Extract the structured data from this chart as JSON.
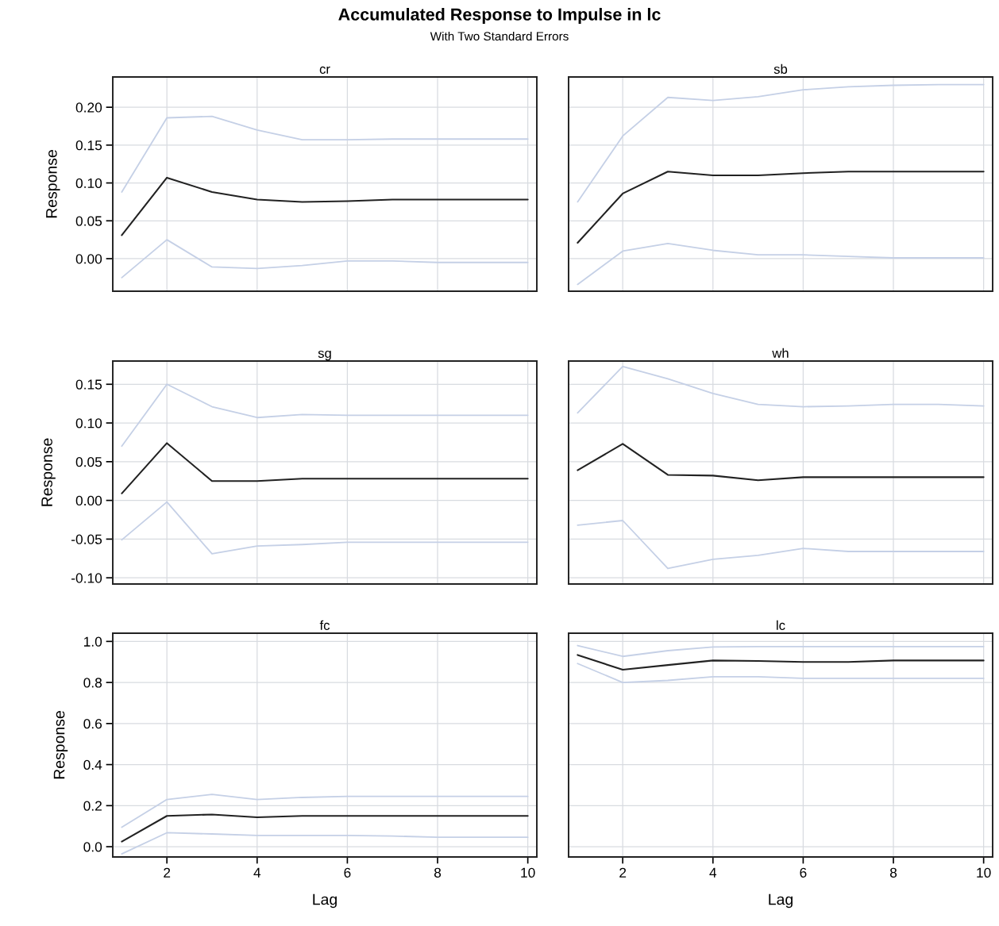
{
  "chart_data": [
    {
      "type": "line",
      "title": "cr",
      "ylabel": "Response",
      "annotations": [
        "Accumulated Response to Impulse in lc",
        "With Two Standard Errors"
      ],
      "x": [
        1,
        2,
        3,
        4,
        5,
        6,
        7,
        8,
        9,
        10
      ],
      "xlim": [
        0.8,
        10.2
      ],
      "xticks": [
        2,
        4,
        6,
        8,
        10
      ],
      "ylim": [
        -0.043,
        0.24
      ],
      "yticks": [
        {
          "value": 0,
          "label": "0.00"
        },
        {
          "value": 0.05,
          "label": "0.05"
        },
        {
          "value": 0.1,
          "label": "0.10"
        },
        {
          "value": 0.15,
          "label": "0.15"
        },
        {
          "value": 0.2,
          "label": "0.20"
        }
      ],
      "grid": true,
      "tick_labels": "y",
      "series": [
        {
          "color": "#c5d0e6",
          "values": [
            0.088,
            0.186,
            0.188,
            0.17,
            0.157,
            0.157,
            0.158,
            0.158,
            0.158,
            0.158
          ]
        },
        {
          "color": "#222222",
          "values": [
            0.031,
            0.107,
            0.088,
            0.078,
            0.075,
            0.076,
            0.078,
            0.078,
            0.078,
            0.078
          ]
        },
        {
          "color": "#c5d0e6",
          "values": [
            -0.025,
            0.025,
            -0.011,
            -0.013,
            -0.009,
            -0.003,
            -0.003,
            -0.005,
            -0.005,
            -0.005
          ]
        }
      ]
    },
    {
      "type": "line",
      "title": "sb",
      "x": [
        1,
        2,
        3,
        4,
        5,
        6,
        7,
        8,
        9,
        10
      ],
      "xlim": [
        0.8,
        10.2
      ],
      "xticks": [
        2,
        4,
        6,
        8,
        10
      ],
      "ylim": [
        -0.043,
        0.24
      ],
      "yticks": [
        0,
        0.05,
        0.1,
        0.15,
        0.2
      ],
      "grid": true,
      "tick_labels": false,
      "series": [
        {
          "color": "#c5d0e6",
          "values": [
            0.075,
            0.162,
            0.213,
            0.209,
            0.214,
            0.223,
            0.227,
            0.229,
            0.23,
            0.23
          ]
        },
        {
          "color": "#222222",
          "values": [
            0.021,
            0.086,
            0.115,
            0.11,
            0.11,
            0.113,
            0.115,
            0.115,
            0.115,
            0.115
          ]
        },
        {
          "color": "#c5d0e6",
          "values": [
            -0.034,
            0.01,
            0.02,
            0.011,
            0.005,
            0.005,
            0.003,
            0.001,
            0.001,
            0.001
          ]
        }
      ]
    },
    {
      "type": "line",
      "title": "sg",
      "ylabel": "Response",
      "x": [
        1,
        2,
        3,
        4,
        5,
        6,
        7,
        8,
        9,
        10
      ],
      "xlim": [
        0.8,
        10.2
      ],
      "xticks": [
        2,
        4,
        6,
        8,
        10
      ],
      "ylim": [
        -0.108,
        0.18
      ],
      "yticks": [
        {
          "value": -0.1,
          "label": "-0.10"
        },
        {
          "value": -0.05,
          "label": "-0.05"
        },
        {
          "value": 0,
          "label": "0.00"
        },
        {
          "value": 0.05,
          "label": "0.05"
        },
        {
          "value": 0.1,
          "label": "0.10"
        },
        {
          "value": 0.15,
          "label": "0.15"
        }
      ],
      "grid": true,
      "tick_labels": "y",
      "series": [
        {
          "color": "#c5d0e6",
          "values": [
            0.07,
            0.15,
            0.121,
            0.107,
            0.111,
            0.11,
            0.11,
            0.11,
            0.11,
            0.11
          ]
        },
        {
          "color": "#222222",
          "values": [
            0.009,
            0.074,
            0.025,
            0.025,
            0.028,
            0.028,
            0.028,
            0.028,
            0.028,
            0.028
          ]
        },
        {
          "color": "#c5d0e6",
          "values": [
            -0.051,
            -0.002,
            -0.069,
            -0.059,
            -0.057,
            -0.054,
            -0.054,
            -0.054,
            -0.054,
            -0.054
          ]
        }
      ]
    },
    {
      "type": "line",
      "title": "wh",
      "x": [
        1,
        2,
        3,
        4,
        5,
        6,
        7,
        8,
        9,
        10
      ],
      "xlim": [
        0.8,
        10.2
      ],
      "xticks": [
        2,
        4,
        6,
        8,
        10
      ],
      "ylim": [
        -0.108,
        0.18
      ],
      "yticks": [
        -0.1,
        -0.05,
        0,
        0.05,
        0.1,
        0.15
      ],
      "grid": true,
      "tick_labels": false,
      "series": [
        {
          "color": "#c5d0e6",
          "values": [
            0.113,
            0.173,
            0.157,
            0.138,
            0.124,
            0.121,
            0.122,
            0.124,
            0.124,
            0.122
          ]
        },
        {
          "color": "#222222",
          "values": [
            0.039,
            0.073,
            0.033,
            0.032,
            0.026,
            0.03,
            0.03,
            0.03,
            0.03,
            0.03
          ]
        },
        {
          "color": "#c5d0e6",
          "values": [
            -0.032,
            -0.026,
            -0.088,
            -0.076,
            -0.071,
            -0.062,
            -0.066,
            -0.066,
            -0.066,
            -0.066
          ]
        }
      ]
    },
    {
      "type": "line",
      "title": "fc",
      "ylabel": "Response",
      "xlabel": "Lag",
      "x": [
        1,
        2,
        3,
        4,
        5,
        6,
        7,
        8,
        9,
        10
      ],
      "xlim": [
        0.8,
        10.2
      ],
      "xticks": [
        2,
        4,
        6,
        8,
        10
      ],
      "ylim": [
        -0.05,
        1.04
      ],
      "yticks": [
        {
          "value": 0,
          "label": "0.0"
        },
        {
          "value": 0.2,
          "label": "0.2"
        },
        {
          "value": 0.4,
          "label": "0.4"
        },
        {
          "value": 0.6,
          "label": "0.6"
        },
        {
          "value": 0.8,
          "label": "0.8"
        },
        {
          "value": 1,
          "label": "1.0"
        }
      ],
      "grid": true,
      "series": [
        {
          "color": "#c5d0e6",
          "values": [
            0.095,
            0.23,
            0.255,
            0.23,
            0.24,
            0.245,
            0.245,
            0.245,
            0.245,
            0.245
          ]
        },
        {
          "color": "#222222",
          "values": [
            0.025,
            0.15,
            0.157,
            0.143,
            0.15,
            0.15,
            0.15,
            0.15,
            0.15,
            0.15
          ]
        },
        {
          "color": "#c5d0e6",
          "values": [
            -0.035,
            0.068,
            0.062,
            0.055,
            0.055,
            0.055,
            0.052,
            0.046,
            0.046,
            0.046
          ]
        }
      ]
    },
    {
      "type": "line",
      "title": "lc",
      "xlabel": "Lag",
      "x": [
        1,
        2,
        3,
        4,
        5,
        6,
        7,
        8,
        9,
        10
      ],
      "xlim": [
        0.8,
        10.2
      ],
      "xticks": [
        2,
        4,
        6,
        8,
        10
      ],
      "ylim": [
        -0.05,
        1.04
      ],
      "yticks": [
        0,
        0.2,
        0.4,
        0.6,
        0.8,
        1
      ],
      "grid": true,
      "tick_labels": "x",
      "series": [
        {
          "color": "#c5d0e6",
          "values": [
            0.98,
            0.927,
            0.955,
            0.973,
            0.975,
            0.975,
            0.975,
            0.975,
            0.975,
            0.975
          ]
        },
        {
          "color": "#222222",
          "values": [
            0.934,
            0.862,
            0.885,
            0.907,
            0.905,
            0.9,
            0.9,
            0.907,
            0.907,
            0.907
          ]
        },
        {
          "color": "#c5d0e6",
          "values": [
            0.892,
            0.8,
            0.81,
            0.828,
            0.828,
            0.82,
            0.82,
            0.82,
            0.82,
            0.82
          ]
        }
      ]
    }
  ]
}
